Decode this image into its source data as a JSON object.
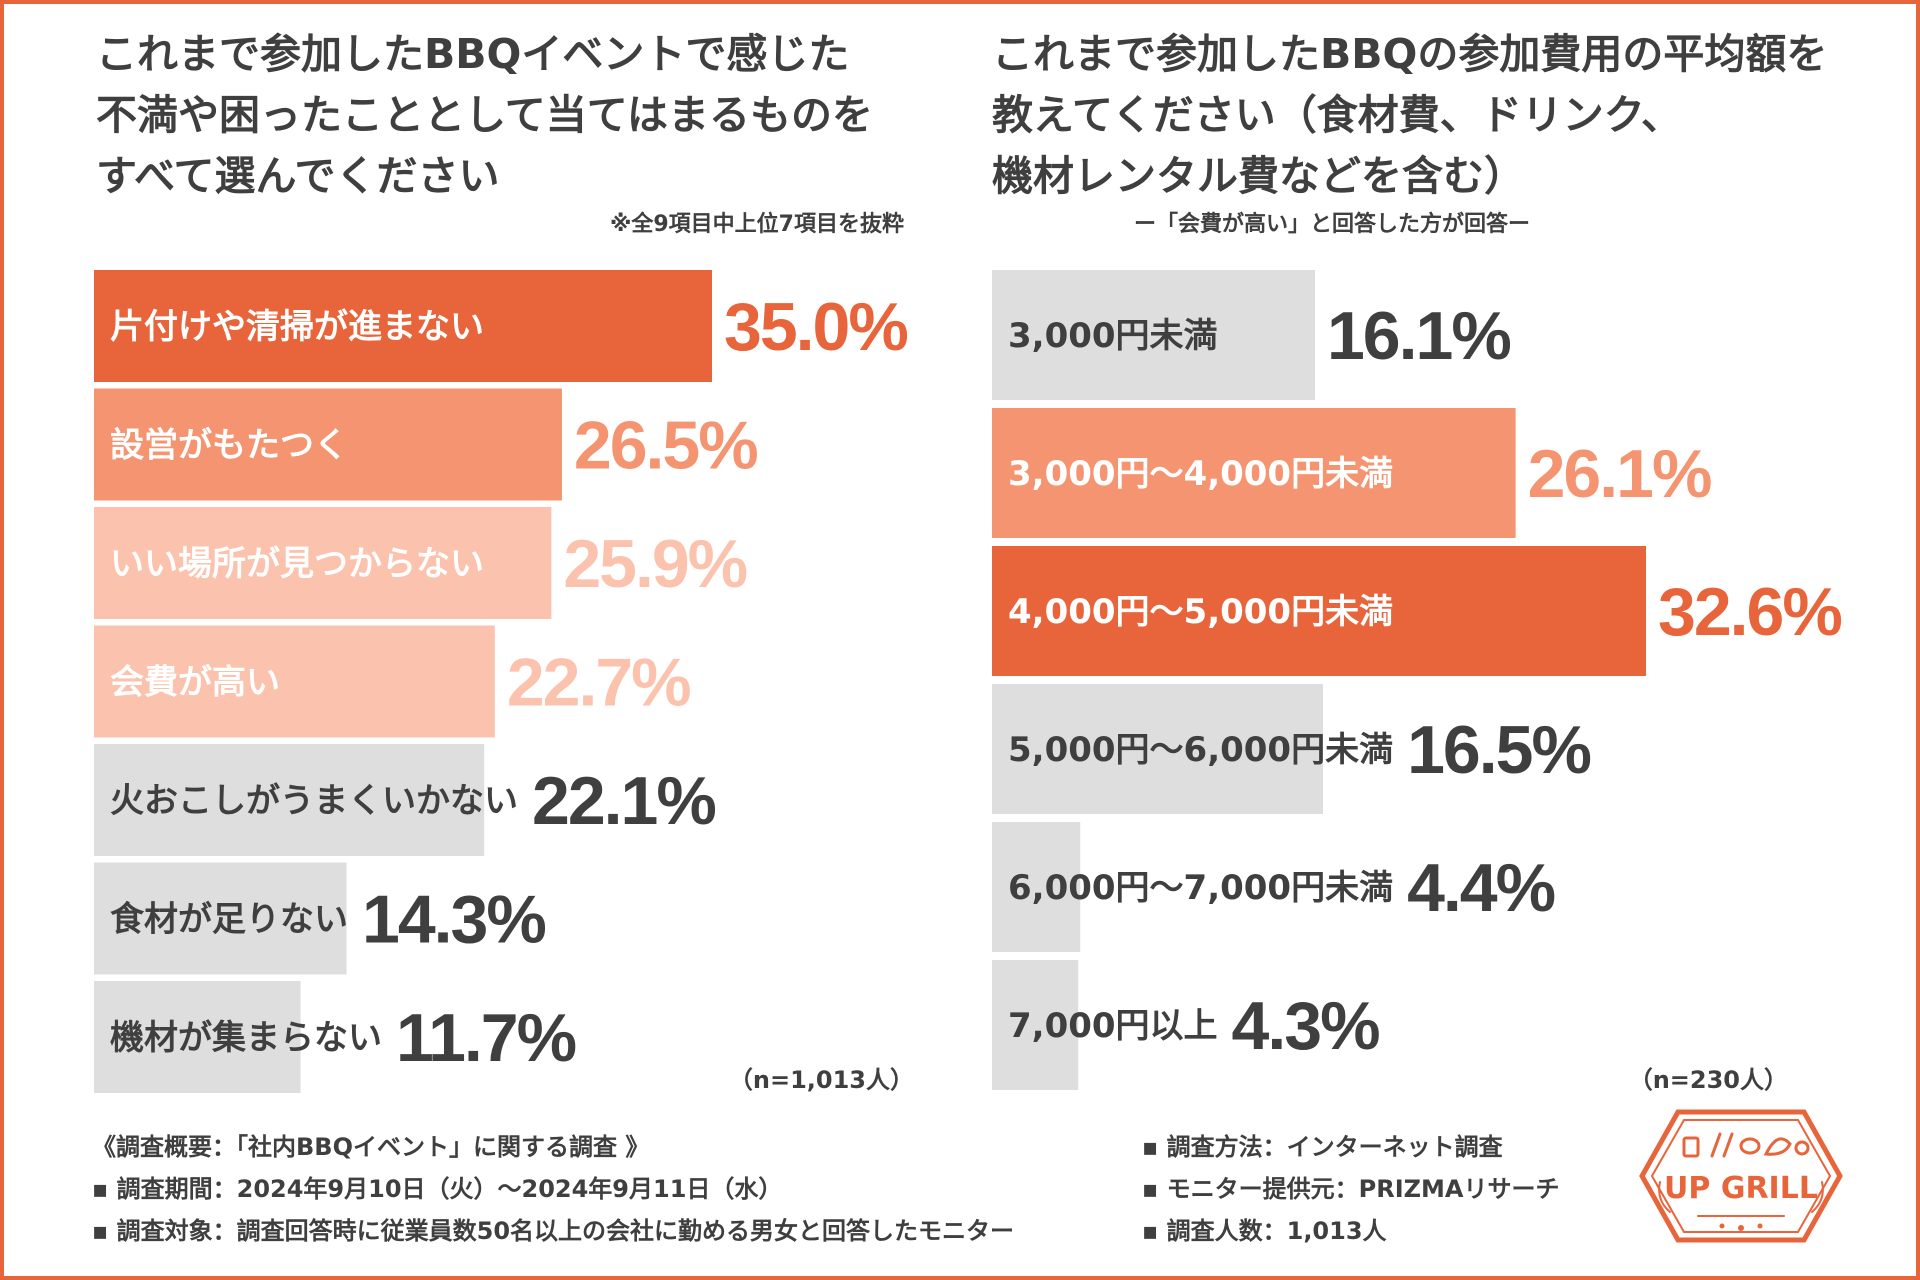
{
  "left": {
    "title": "これまで参加したBBQイベントで感じた\n不満や困ったこととして当てはまるものを\nすべて選んでください",
    "note": "※全9項目中上位7項目を抜粋",
    "n": "（n=1,013人）"
  },
  "right": {
    "title": "これまで参加したBBQの参加費用の平均額を\n教えてください（食材費、ドリンク、\n機材レンタル費などを含む）",
    "note": "ー「会費が高い」と回答した方が回答ー",
    "n": "（n=230人）"
  },
  "chart_data": [
    {
      "type": "bar",
      "orientation": "horizontal",
      "title": "これまで参加したBBQイベントで感じた不満や困ったこととして当てはまるものをすべて選んでください",
      "categories": [
        "片付けや清掃が進まない",
        "設営がもたつく",
        "いい場所が見つからない",
        "会費が高い",
        "火おこしがうまくいかない",
        "食材が足りない",
        "機材が集まらない"
      ],
      "values": [
        35.0,
        26.5,
        25.9,
        22.7,
        22.1,
        14.3,
        11.7
      ],
      "value_labels": [
        "35.0%",
        "26.5%",
        "25.9%",
        "22.7%",
        "22.1%",
        "14.3%",
        "11.7%"
      ],
      "bar_colors": [
        "#e8643a",
        "#f59470",
        "#fbc3ad",
        "#fbc3ad",
        "#dedede",
        "#dedede",
        "#dedede"
      ],
      "label_colors": [
        "#ffffff",
        "#ffffff",
        "#ffffff",
        "#ffffff",
        "#3f3f3f",
        "#3f3f3f",
        "#3f3f3f"
      ],
      "value_colors": [
        "#e8643a",
        "#f59470",
        "#fbc3ad",
        "#fbc3ad",
        "#3f3f3f",
        "#3f3f3f",
        "#3f3f3f"
      ],
      "unit": "%",
      "xlim": [
        0,
        35.0
      ]
    },
    {
      "type": "bar",
      "orientation": "horizontal",
      "title": "これまで参加したBBQの参加費用の平均額を教えてください（食材費、ドリンク、機材レンタル費などを含む）",
      "categories": [
        "3,000円未満",
        "3,000円〜4,000円未満",
        "4,000円〜5,000円未満",
        "5,000円〜6,000円未満",
        "6,000円〜7,000円未満",
        "7,000円以上"
      ],
      "values": [
        16.1,
        26.1,
        32.6,
        16.5,
        4.4,
        4.3
      ],
      "value_labels": [
        "16.1%",
        "26.1%",
        "32.6%",
        "16.5%",
        "4.4%",
        "4.3%"
      ],
      "bar_colors": [
        "#dedede",
        "#f59470",
        "#e8643a",
        "#dedede",
        "#dedede",
        "#dedede"
      ],
      "label_colors": [
        "#3f3f3f",
        "#ffffff",
        "#ffffff",
        "#3f3f3f",
        "#3f3f3f",
        "#3f3f3f"
      ],
      "value_colors": [
        "#3f3f3f",
        "#f59470",
        "#e8643a",
        "#3f3f3f",
        "#3f3f3f",
        "#3f3f3f"
      ],
      "unit": "%",
      "xlim": [
        0,
        32.6
      ]
    }
  ],
  "footer": {
    "heading": "《調査概要：「社内BBQイベント」に関する調査 》",
    "period": "▪ 調査期間：2024年9月10日（火）〜2024年9月11日（水）",
    "target": "▪ 調査対象：調査回答時に従業員数50名以上の会社に勤める男女と回答したモニター",
    "method": "▪ 調査方法：インターネット調査",
    "provider": "▪ モニター提供元：PRIZMAリサーチ",
    "count": "▪ 調査人数：1,013人"
  },
  "logo": {
    "text": "UP GRILL"
  },
  "colors": {
    "accent": "#e8643a",
    "mid": "#f59470",
    "light": "#fbc3ad",
    "gray": "#dedede",
    "text": "#3f3f3f"
  }
}
